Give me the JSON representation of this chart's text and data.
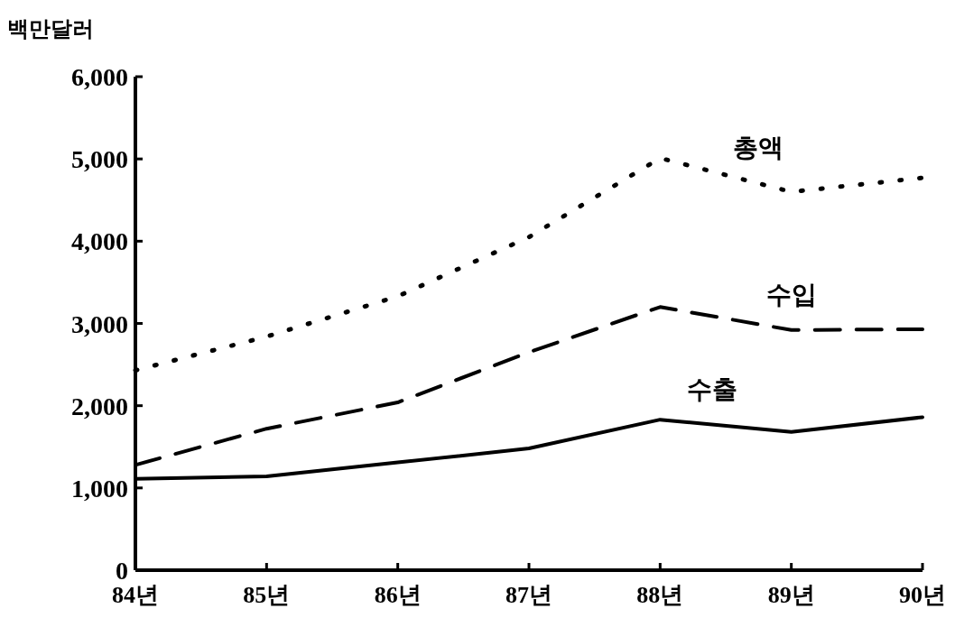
{
  "chart_data": {
    "type": "line",
    "ylabel": "백만달러",
    "categories": [
      "84년",
      "85년",
      "86년",
      "87년",
      "88년",
      "89년",
      "90년"
    ],
    "series": [
      {
        "name": "총액",
        "color": "#000000",
        "line_style": "dotted",
        "values": [
          2430,
          2840,
          3330,
          4050,
          5010,
          4600,
          4770
        ]
      },
      {
        "name": "수입",
        "color": "#000000",
        "line_style": "dashed",
        "values": [
          1280,
          1720,
          2040,
          2650,
          3200,
          2920,
          2930
        ]
      },
      {
        "name": "수출",
        "color": "#000000",
        "line_style": "solid",
        "values": [
          1110,
          1140,
          1310,
          1480,
          1830,
          1680,
          1860
        ]
      }
    ],
    "ylim": [
      0,
      6000
    ],
    "yticks": [
      0,
      {
        "value": 1000,
        "label": "1,000"
      },
      {
        "value": 2000,
        "label": "2,000"
      },
      {
        "value": 3000,
        "label": "3,000"
      },
      {
        "value": 4000,
        "label": "4,000"
      },
      {
        "value": 5000,
        "label": "5,000"
      },
      {
        "value": 6000,
        "label": "6,000"
      }
    ],
    "grid": false,
    "legend": false,
    "marker": "none"
  }
}
